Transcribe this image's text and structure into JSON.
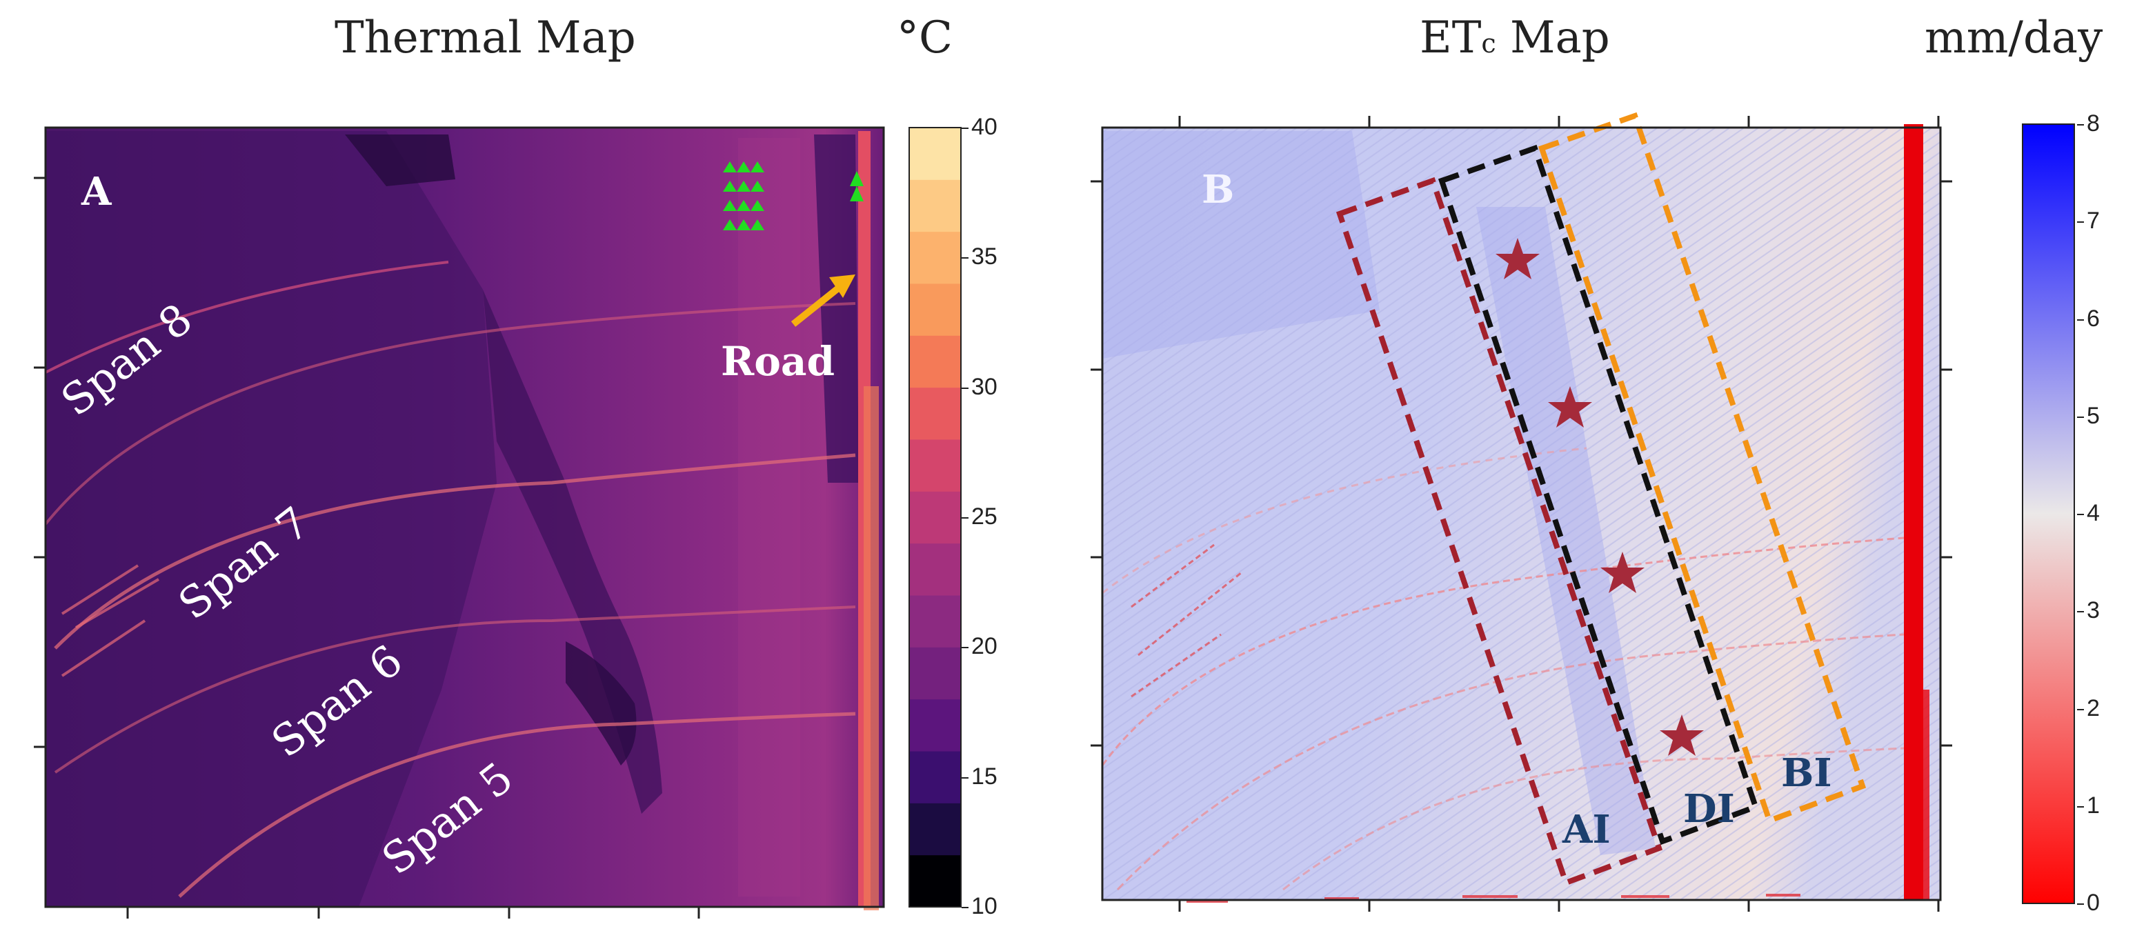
{
  "panel_a": {
    "title": "Thermal Map",
    "units": "°C",
    "letter": "A",
    "road_label": "Road",
    "spans": [
      "Span 8",
      "Span 7",
      "Span 6",
      "Span 5"
    ],
    "colorbar": {
      "ticks": [
        "40",
        "35",
        "30",
        "25",
        "20",
        "15",
        "10"
      ],
      "range": [
        10,
        40
      ],
      "colors": [
        "#000004",
        "#1b0c41",
        "#3b0f6f",
        "#5c157d",
        "#74217e",
        "#8c2a81",
        "#a3307e",
        "#bd3977",
        "#d4456c",
        "#e85a5f",
        "#f47a57",
        "#f99a5c",
        "#fcb26d",
        "#fdca85",
        "#fde3a6"
      ]
    }
  },
  "panel_b": {
    "title": "ETc Map",
    "title_main": "ET",
    "title_sub": "c",
    "title_rest": " Map",
    "units": "mm/day",
    "letter": "B",
    "zones": [
      "AI",
      "DI",
      "BI"
    ],
    "colorbar": {
      "ticks": [
        "8",
        "7",
        "6",
        "5",
        "4",
        "3",
        "2",
        "1",
        "0"
      ],
      "range": [
        0,
        8
      ],
      "colors": [
        "#0000ff",
        "#ebe8e8",
        "#ff0000"
      ]
    }
  }
}
